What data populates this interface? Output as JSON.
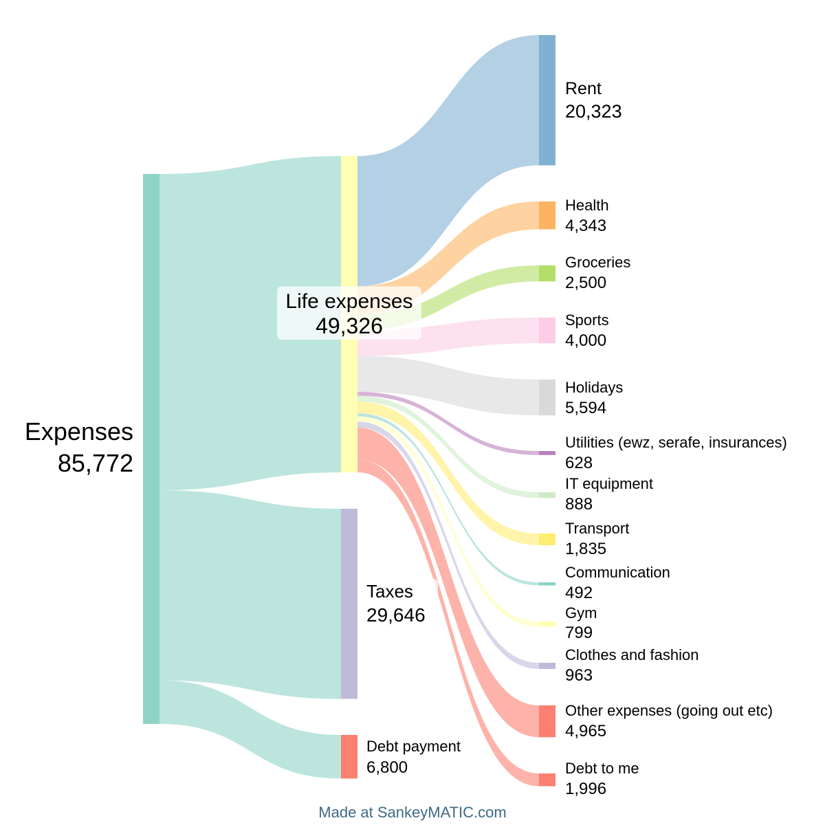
{
  "chart_data": {
    "type": "sankey",
    "nodes": [
      {
        "id": "expenses",
        "label": "Expenses",
        "value": "85,772",
        "color": "#8fd3c6"
      },
      {
        "id": "life",
        "label": "Life expenses",
        "value": "49,326",
        "color": "#ffffb3"
      },
      {
        "id": "taxes",
        "label": "Taxes",
        "value": "29,646",
        "color": "#bebada"
      },
      {
        "id": "debtpay",
        "label": "Debt payment",
        "value": "6,800",
        "color": "#fb8072"
      },
      {
        "id": "rent",
        "label": "Rent",
        "value": "20,323",
        "color": "#80b1d3"
      },
      {
        "id": "health",
        "label": "Health",
        "value": "4,343",
        "color": "#fdb462"
      },
      {
        "id": "groceries",
        "label": "Groceries",
        "value": "2,500",
        "color": "#b3de69"
      },
      {
        "id": "sports",
        "label": "Sports",
        "value": "4,000",
        "color": "#fccde5"
      },
      {
        "id": "holidays",
        "label": "Holidays",
        "value": "5,594",
        "color": "#d9d9d9"
      },
      {
        "id": "utilities",
        "label": "Utilities (ewz, serafe, insurances)",
        "value": "628",
        "color": "#bc80bd"
      },
      {
        "id": "it",
        "label": "IT equipment",
        "value": "888",
        "color": "#ccebc5"
      },
      {
        "id": "transport",
        "label": "Transport",
        "value": "1,835",
        "color": "#ffed6f"
      },
      {
        "id": "communication",
        "label": "Communication",
        "value": "492",
        "color": "#8dd3c7"
      },
      {
        "id": "gym",
        "label": "Gym",
        "value": "799",
        "color": "#ffffb3"
      },
      {
        "id": "clothes",
        "label": "Clothes and fashion",
        "value": "963",
        "color": "#bebada"
      },
      {
        "id": "other",
        "label": "Other expenses (going out etc)",
        "value": "4,965",
        "color": "#fb8072"
      },
      {
        "id": "debtme",
        "label": "Debt to me",
        "value": "1,996",
        "color": "#fb8072"
      }
    ],
    "links": [
      {
        "source": "expenses",
        "target": "life",
        "value": 49326
      },
      {
        "source": "expenses",
        "target": "taxes",
        "value": 29646
      },
      {
        "source": "expenses",
        "target": "debtpay",
        "value": 6800
      },
      {
        "source": "life",
        "target": "rent",
        "value": 20323
      },
      {
        "source": "life",
        "target": "health",
        "value": 4343
      },
      {
        "source": "life",
        "target": "groceries",
        "value": 2500
      },
      {
        "source": "life",
        "target": "sports",
        "value": 4000
      },
      {
        "source": "life",
        "target": "holidays",
        "value": 5594
      },
      {
        "source": "life",
        "target": "utilities",
        "value": 628
      },
      {
        "source": "life",
        "target": "it",
        "value": 888
      },
      {
        "source": "life",
        "target": "transport",
        "value": 1835
      },
      {
        "source": "life",
        "target": "communication",
        "value": 492
      },
      {
        "source": "life",
        "target": "gym",
        "value": 799
      },
      {
        "source": "life",
        "target": "clothes",
        "value": 963
      },
      {
        "source": "life",
        "target": "other",
        "value": 4965
      },
      {
        "source": "life",
        "target": "debtme",
        "value": 1996
      }
    ]
  },
  "footer": {
    "credit": "Made at SankeyMATIC.com"
  }
}
